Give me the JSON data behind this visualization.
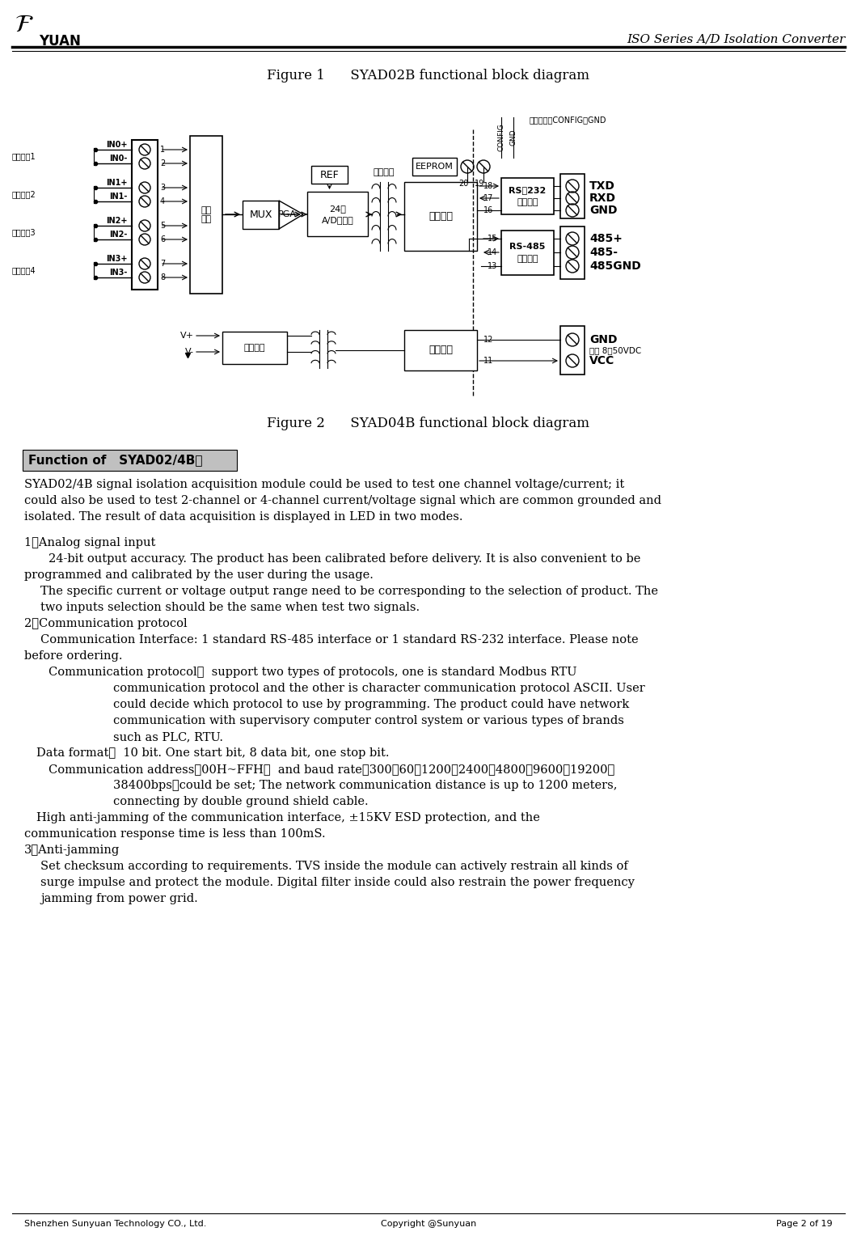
{
  "page_width": 10.6,
  "page_height": 15.28,
  "bg_color": "#ffffff",
  "footer": {
    "left": "Shenzhen Sunyuan Technology CO., Ltd.",
    "center": "Copyright @Sunyuan",
    "right": "Page 2 of 19"
  },
  "figure1_caption": "Figure 1      SYAD02B functional block diagram",
  "figure2_caption": "Figure 2      SYAD04B functional block diagram",
  "function_heading_normal": "Function of   ",
  "function_heading_highlight": "SYAD02/4B："
}
